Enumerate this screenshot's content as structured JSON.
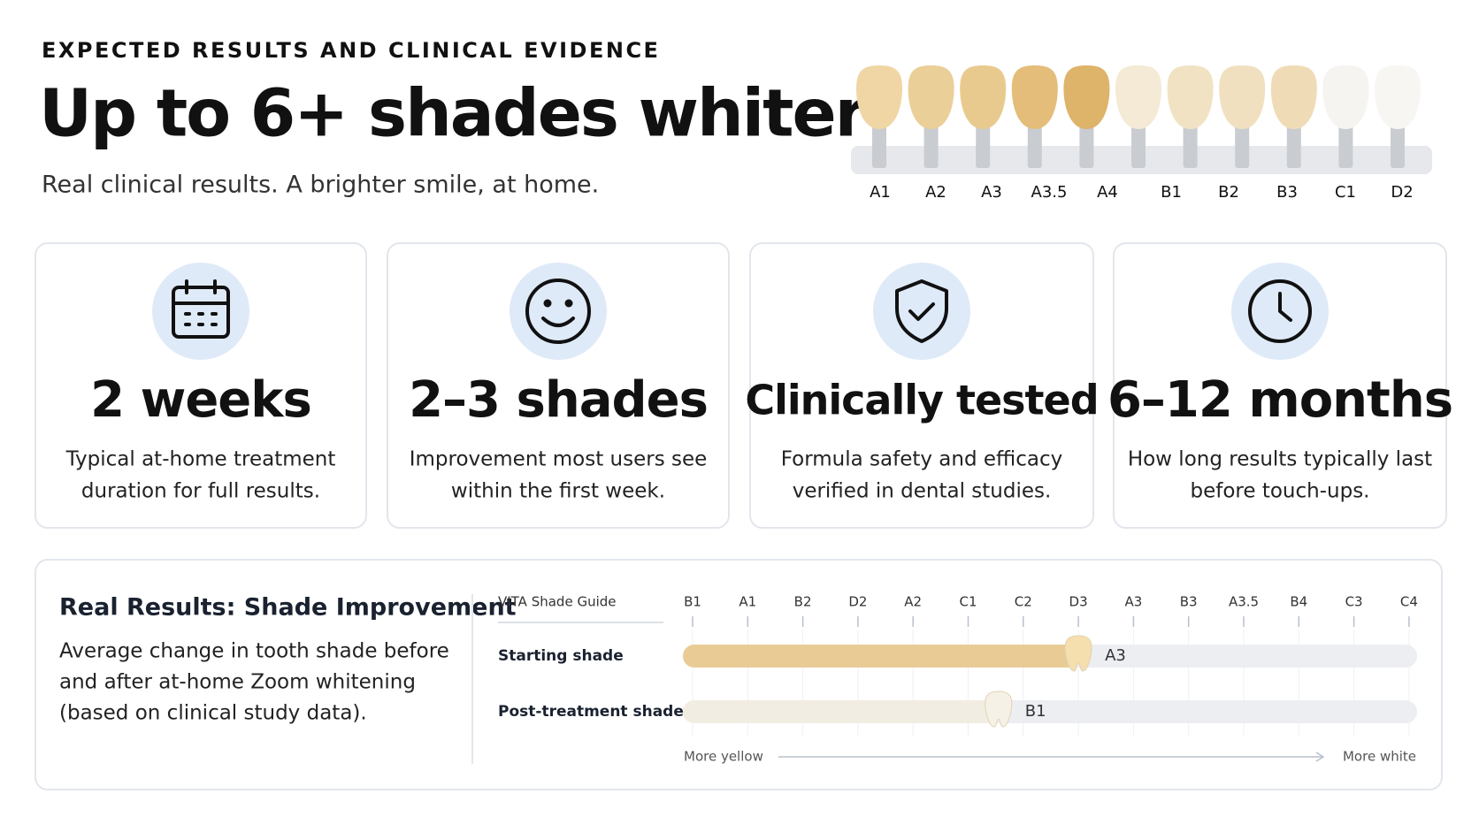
{
  "header": {
    "eyebrow": "EXPECTED RESULTS AND CLINICAL EVIDENCE",
    "title": "Up to 6+ shades whiter",
    "subtitle": "Real clinical results. A brighter smile, at home."
  },
  "shade_guide": {
    "labels": [
      "A1",
      "A2",
      "A3",
      "A3.5",
      "A4",
      "B1",
      "B2",
      "B3",
      "C1",
      "D2"
    ]
  },
  "stats": [
    {
      "value": "2 weeks",
      "text": [
        "Typical at-home treatment",
        "duration for full results."
      ]
    },
    {
      "value": "2–3 shades",
      "text": [
        "Improvement most users see",
        "within the first week."
      ]
    },
    {
      "value": "Clinically tested",
      "text": [
        "Formula safety and efficacy",
        "verified in dental studies."
      ]
    },
    {
      "value": "6–12 months",
      "text": [
        "How long results typically last",
        "before touch-ups."
      ]
    }
  ],
  "results": {
    "title": "Real Results: Shade Improvement",
    "description": [
      "Average change in tooth shade before",
      "and after at-home Zoom whitening",
      "(based on clinical study data)."
    ],
    "guide_label": "VITA Shade Guide",
    "scale": [
      "B1",
      "A1",
      "B2",
      "D2",
      "A2",
      "C1",
      "C2",
      "D3",
      "A3",
      "B3",
      "A3.5",
      "B4",
      "C3",
      "C4"
    ],
    "rows": [
      {
        "label": "Starting shade",
        "shade": "A3",
        "position": 7
      },
      {
        "label": "Post-treatment shade",
        "shade": "B1",
        "position": 5.55
      }
    ],
    "axis": {
      "start": "More yellow",
      "end": "More white"
    }
  }
}
